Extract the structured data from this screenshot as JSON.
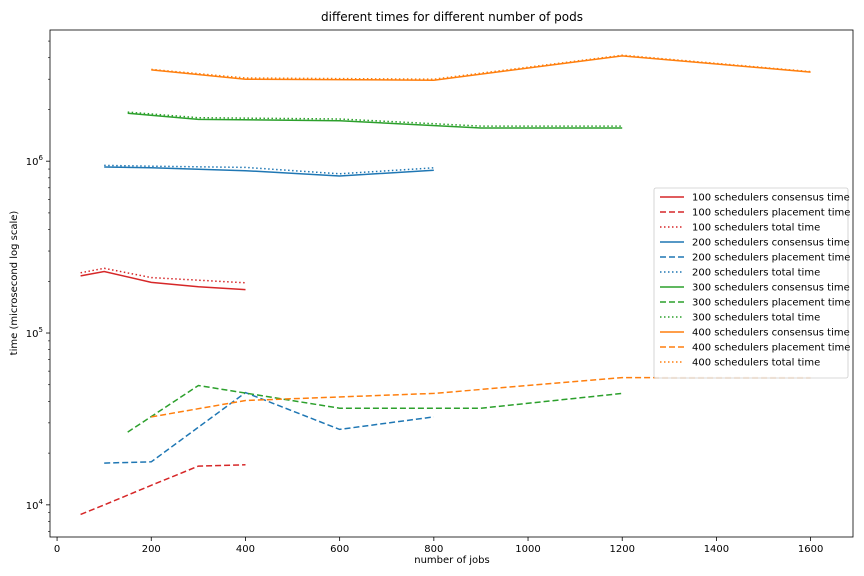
{
  "chart_data": {
    "type": "line",
    "title": "different times for different number of pods",
    "xlabel": "number of jobs",
    "ylabel": "time (microsecond log scale)",
    "xlim": [
      -15,
      1690
    ],
    "ylim": [
      6500,
      5800000
    ],
    "yscale": "log",
    "xticks": [
      0,
      200,
      400,
      600,
      800,
      1000,
      1200,
      1400,
      1600
    ],
    "xtick_labels": [
      "0",
      "200",
      "400",
      "600",
      "800",
      "1000",
      "1200",
      "1400",
      "1600"
    ],
    "yticks": [
      10000,
      100000,
      1000000
    ],
    "ytick_bases": [
      "10",
      "10",
      "10"
    ],
    "ytick_exps": [
      "4",
      "5",
      "6"
    ],
    "grid": false,
    "legend_position": "center-right",
    "series": [
      {
        "name": "100 schedulers consensus time",
        "color": "#d62728",
        "style": "solid",
        "x": [
          50,
          100,
          200,
          300,
          400
        ],
        "y": [
          215000,
          228000,
          197000,
          186000,
          179000
        ]
      },
      {
        "name": "100 schedulers placement time",
        "color": "#d62728",
        "style": "dashed",
        "x": [
          50,
          100,
          200,
          300,
          400
        ],
        "y": [
          8800,
          10000,
          13000,
          16800,
          17100
        ]
      },
      {
        "name": "100 schedulers total time",
        "color": "#d62728",
        "style": "dotted",
        "x": [
          50,
          100,
          200,
          300,
          400
        ],
        "y": [
          224000,
          238000,
          210000,
          203000,
          196000
        ]
      },
      {
        "name": "200 schedulers consensus time",
        "color": "#1f77b4",
        "style": "solid",
        "x": [
          100,
          200,
          400,
          600,
          800
        ],
        "y": [
          925000,
          915000,
          880000,
          820000,
          885000
        ]
      },
      {
        "name": "200 schedulers placement time",
        "color": "#1f77b4",
        "style": "dashed",
        "x": [
          100,
          200,
          400,
          600,
          800
        ],
        "y": [
          17500,
          17800,
          45000,
          27500,
          32500
        ]
      },
      {
        "name": "200 schedulers total time",
        "color": "#1f77b4",
        "style": "dotted",
        "x": [
          100,
          200,
          400,
          600,
          800
        ],
        "y": [
          945000,
          935000,
          920000,
          845000,
          915000
        ]
      },
      {
        "name": "300 schedulers consensus time",
        "color": "#2ca02c",
        "style": "solid",
        "x": [
          150,
          300,
          600,
          900,
          1200
        ],
        "y": [
          1900000,
          1750000,
          1720000,
          1560000,
          1560000
        ]
      },
      {
        "name": "300 schedulers placement time",
        "color": "#2ca02c",
        "style": "dashed",
        "x": [
          150,
          300,
          600,
          900,
          1200
        ],
        "y": [
          26500,
          49500,
          36500,
          36500,
          44500
        ]
      },
      {
        "name": "300 schedulers total time",
        "color": "#2ca02c",
        "style": "dotted",
        "x": [
          150,
          300,
          600,
          900,
          1200
        ],
        "y": [
          1930000,
          1790000,
          1760000,
          1600000,
          1600000
        ]
      },
      {
        "name": "400 schedulers consensus time",
        "color": "#ff7f0e",
        "style": "solid",
        "x": [
          200,
          400,
          800,
          1200,
          1600
        ],
        "y": [
          3400000,
          3000000,
          2960000,
          4100000,
          3300000
        ]
      },
      {
        "name": "400 schedulers placement time",
        "color": "#ff7f0e",
        "style": "dashed",
        "x": [
          200,
          400,
          800,
          1200,
          1600
        ],
        "y": [
          32500,
          40500,
          44500,
          55000,
          55000
        ]
      },
      {
        "name": "400 schedulers total time",
        "color": "#ff7f0e",
        "style": "dotted",
        "x": [
          200,
          400,
          800,
          1200,
          1600
        ],
        "y": [
          3420000,
          3050000,
          3000000,
          4140000,
          3320000
        ]
      }
    ]
  }
}
